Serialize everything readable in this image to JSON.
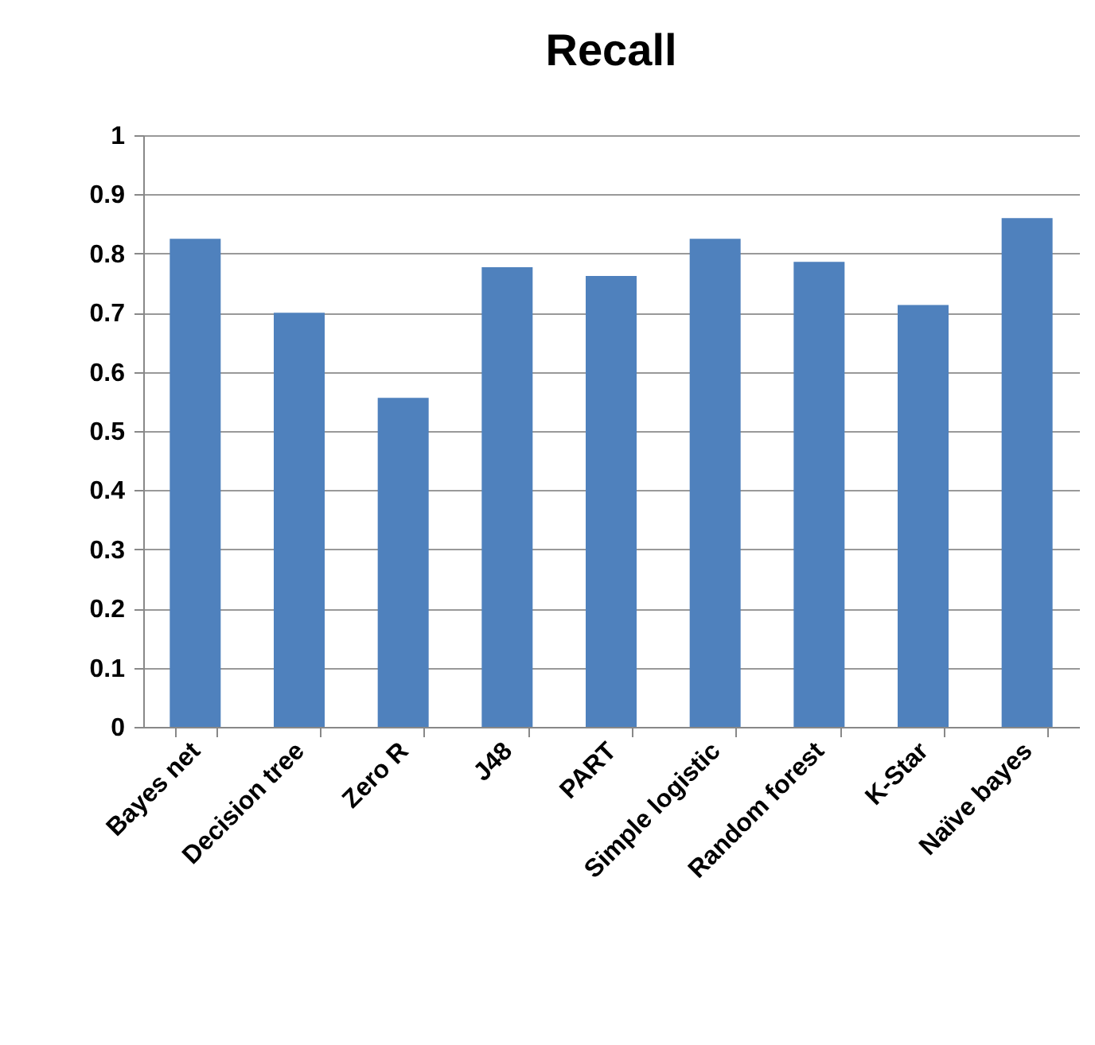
{
  "chart_data": {
    "type": "bar",
    "title": "Recall",
    "categories": [
      "Bayes net",
      "Decision tree",
      "Zero R",
      "J48",
      "PART",
      "Simple logistic",
      "Random forest",
      "K-Star",
      "Naïve bayes"
    ],
    "values": [
      0.825,
      0.7,
      0.556,
      0.777,
      0.762,
      0.825,
      0.786,
      0.713,
      0.86
    ],
    "color": "#4f81bd",
    "ylim": [
      0,
      1
    ],
    "yticks": [
      0,
      0.1,
      0.2,
      0.3,
      0.4,
      0.5,
      0.6,
      0.7,
      0.8,
      0.9,
      1
    ],
    "grid": "y"
  }
}
